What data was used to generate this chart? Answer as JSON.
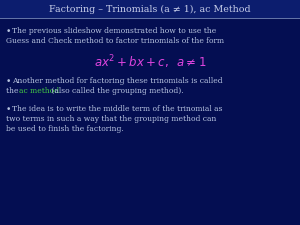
{
  "title": "Factoring – Trinomials (a ≠ 1), ac Method",
  "bg_color": "#040e52",
  "title_color": "#c5cce8",
  "title_bar_color": "#0c1d6e",
  "divider_color": "#6677aa",
  "text_color": "#b8c4e0",
  "formula_color": "#dd44dd",
  "ac_color": "#44cc44",
  "bullet1_line1": "The previous slideshow demonstrated how to use the",
  "bullet1_line2": "Guess and Check method to factor trinomials of the form",
  "formula": "$ax^2 + bx + c, \\;\\; a \\neq 1$",
  "bullet2_line1": "Another method for factoring these trinomials is called",
  "bullet2_line2_pre": "the ",
  "bullet2_ac": "ac method",
  "bullet2_line2_post": " (also called the grouping method).",
  "bullet3_line1": "The idea is to write the middle term of the trinomial as",
  "bullet3_line2": "two terms in such a way that the grouping method can",
  "bullet3_line3": "be used to finish the factoring.",
  "fontsize": 5.5,
  "title_fontsize": 6.8
}
